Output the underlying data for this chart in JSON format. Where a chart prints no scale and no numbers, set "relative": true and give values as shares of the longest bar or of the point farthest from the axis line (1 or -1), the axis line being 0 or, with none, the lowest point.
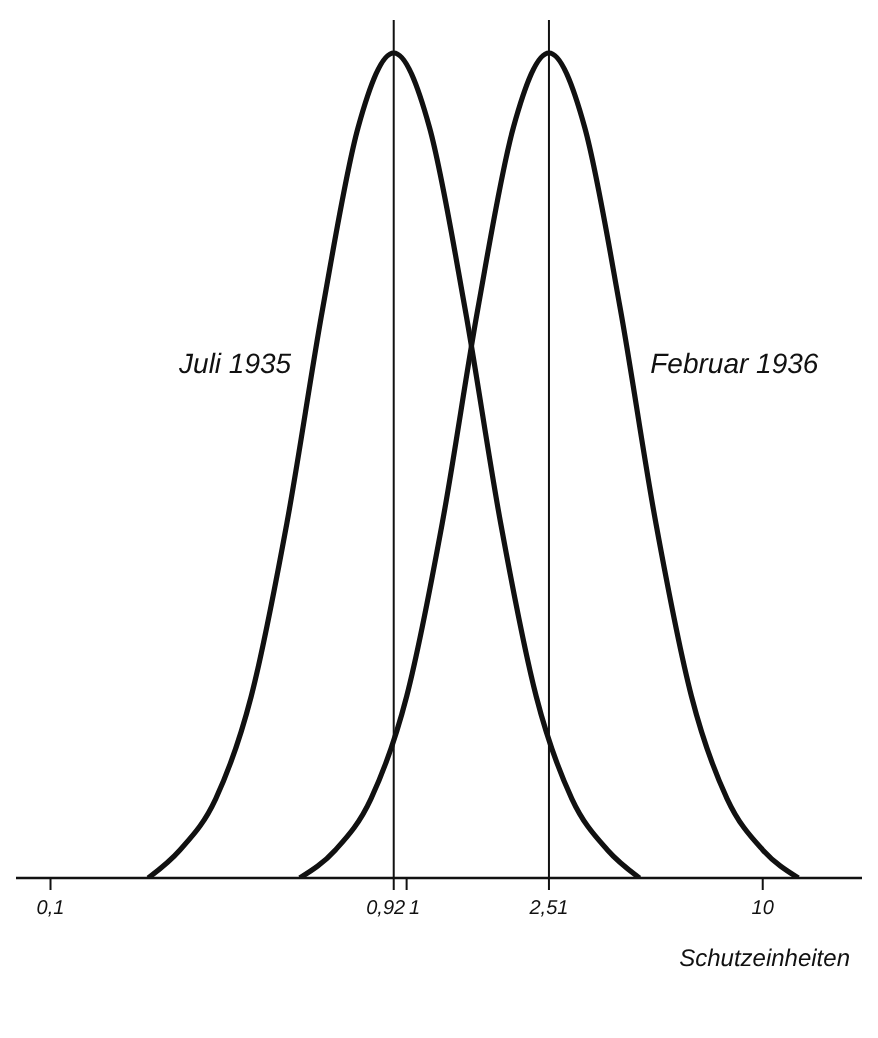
{
  "chart_data": {
    "type": "line",
    "relative": true,
    "xlabel": "Schutzeinheiten",
    "log": "x",
    "xlim": [
      0.08,
      19
    ],
    "xticks": [
      {
        "value": 0.1,
        "label": "0,1"
      },
      {
        "value": 0.92,
        "label": "0,92"
      },
      1,
      {
        "value": 2.51,
        "label": "2,51"
      },
      10
    ],
    "series": [
      {
        "name": "Juli 1935",
        "color": "#111111",
        "x": [
          0.188,
          0.231,
          0.291,
          0.366,
          0.461,
          0.581,
          0.731,
          0.92,
          1.159,
          1.459,
          1.837,
          2.312,
          2.911,
          3.664,
          4.51
        ],
        "values": [
          0,
          0.034,
          0.096,
          0.22,
          0.43,
          0.69,
          0.91,
          1,
          0.91,
          0.69,
          0.43,
          0.22,
          0.096,
          0.034,
          0
        ]
      },
      {
        "name": "Februar 1936",
        "color": "#111111",
        "x": [
          0.501,
          0.631,
          0.794,
          1.0,
          1.259,
          1.585,
          1.995,
          2.51,
          3.162,
          3.981,
          5.012,
          6.31,
          7.943,
          10.0,
          12.59
        ],
        "values": [
          0,
          0.034,
          0.096,
          0.22,
          0.43,
          0.69,
          0.91,
          1,
          0.91,
          0.69,
          0.43,
          0.22,
          0.096,
          0.034,
          0
        ]
      }
    ],
    "ref_lines": [
      {
        "axis": "x",
        "value": 0.92
      },
      {
        "axis": "x",
        "value": 2.51
      }
    ],
    "grid": false,
    "marker": "none",
    "line_style": "solid"
  }
}
